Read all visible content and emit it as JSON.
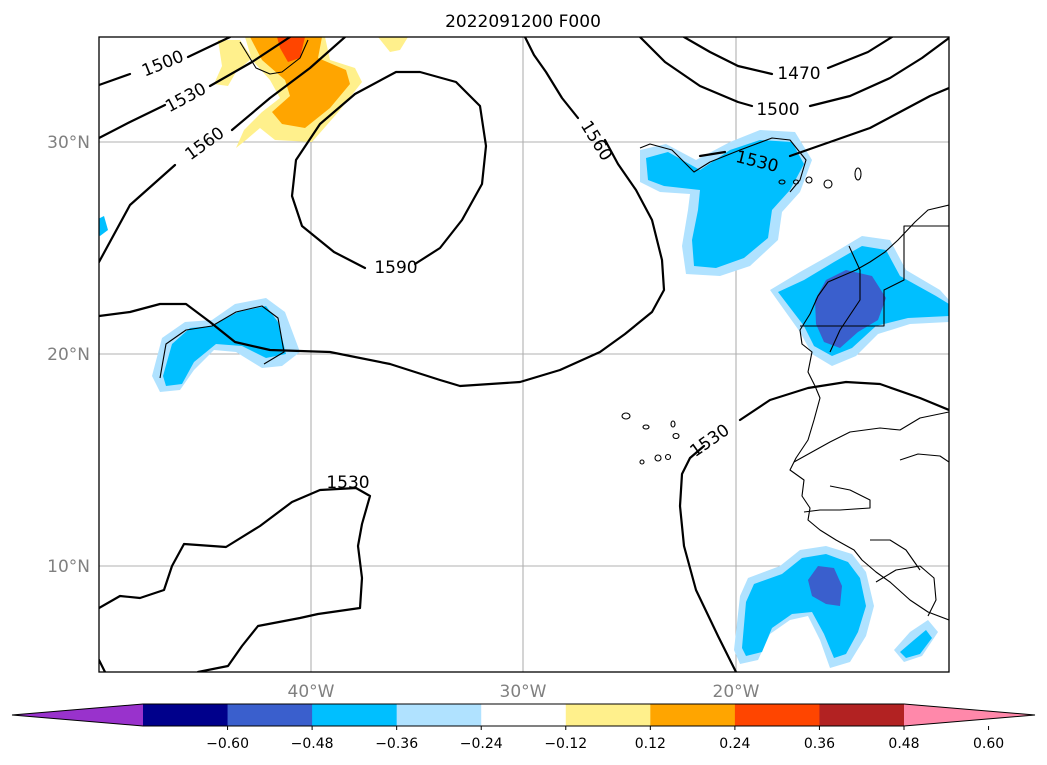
{
  "title": "2022091200 F000",
  "lat_labels": [
    "30°N",
    "20°N",
    "10°N"
  ],
  "lon_labels": [
    "40°W",
    "30°W",
    "20°W"
  ],
  "contour_labels": [
    "1500",
    "1530",
    "1560",
    "1590",
    "1560",
    "1470",
    "1500",
    "1530",
    "1530",
    "1530"
  ],
  "colorbar": {
    "ticks": [
      "−0.60",
      "−0.48",
      "−0.36",
      "−0.24",
      "−0.12",
      "0.12",
      "0.24",
      "0.36",
      "0.48",
      "0.60"
    ],
    "colors": [
      "#9932cc",
      "#00008b",
      "#3a5fcd",
      "#00bfff",
      "#b0e2ff",
      "#ffffff",
      "#fff08c",
      "#ffa500",
      "#ff4500",
      "#b22222",
      "#ff88aa"
    ]
  }
}
